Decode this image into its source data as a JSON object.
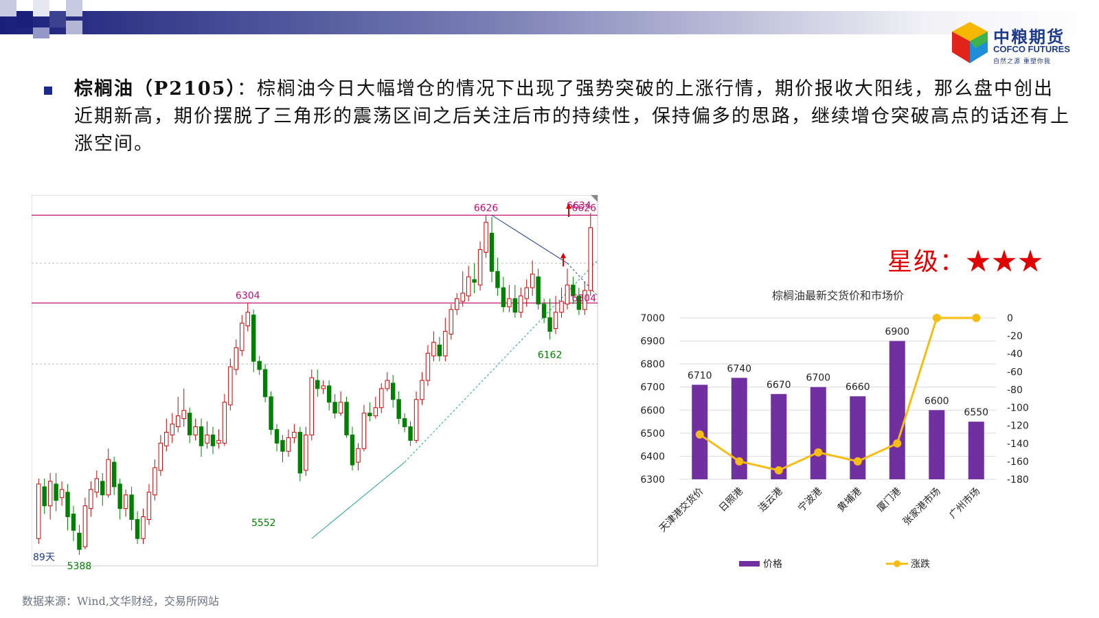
{
  "header": {
    "logo_cn": "中粮期货",
    "logo_en": "COFCO FUTURES",
    "logo_slogan": "自然之源 重塑你我"
  },
  "commentary": {
    "title": "棕榈油（P2105）",
    "separator": "：",
    "text": "棕榈油今日大幅增仓的情况下出现了强势突破的上涨行情，期价报收大阳线，那么盘中创出近期新高，期价摆脱了三角形的震荡区间之后关注后市的持续性，保持偏多的思路，继续增仓突破高点的话还有上涨空间。"
  },
  "rating": {
    "label": "星级：",
    "stars": "★★★"
  },
  "source": "数据来源：Wind,文华财经，交易所网站",
  "chart_data": [
    {
      "type": "candlestick",
      "period_label": "89天",
      "ylim": [
        5340,
        6700
      ],
      "annotations": {
        "high_left": "6304",
        "high_right": "6304",
        "peak_mid": "6626",
        "peak_right": "6626",
        "peak_last": "6634",
        "low_a": "5552",
        "low_b": "5388",
        "low_c": "6162"
      },
      "levels": [
        6626,
        6304
      ],
      "colors": {
        "up": "#d10000",
        "down": "#008000",
        "level": "#c01070"
      },
      "candles": [
        [
          5440,
          5640,
          5420,
          5660
        ],
        [
          5630,
          5560,
          5530,
          5660
        ],
        [
          5560,
          5650,
          5510,
          5680
        ],
        [
          5640,
          5580,
          5540,
          5680
        ],
        [
          5590,
          5620,
          5560,
          5650
        ],
        [
          5610,
          5520,
          5470,
          5640
        ],
        [
          5530,
          5470,
          5430,
          5560
        ],
        [
          5460,
          5400,
          5380,
          5490
        ],
        [
          5410,
          5560,
          5400,
          5590
        ],
        [
          5550,
          5620,
          5520,
          5650
        ],
        [
          5610,
          5660,
          5590,
          5690
        ],
        [
          5650,
          5600,
          5560,
          5680
        ],
        [
          5600,
          5730,
          5590,
          5770
        ],
        [
          5720,
          5630,
          5600,
          5740
        ],
        [
          5640,
          5550,
          5510,
          5660
        ],
        [
          5550,
          5600,
          5520,
          5620
        ],
        [
          5600,
          5510,
          5470,
          5630
        ],
        [
          5510,
          5440,
          5420,
          5540
        ],
        [
          5440,
          5520,
          5420,
          5550
        ],
        [
          5510,
          5610,
          5490,
          5640
        ],
        [
          5600,
          5700,
          5580,
          5730
        ],
        [
          5690,
          5790,
          5670,
          5820
        ],
        [
          5780,
          5830,
          5760,
          5880
        ],
        [
          5820,
          5860,
          5790,
          5900
        ],
        [
          5850,
          5890,
          5830,
          5960
        ],
        [
          5880,
          5910,
          5850,
          5990
        ],
        [
          5900,
          5820,
          5790,
          5920
        ],
        [
          5820,
          5850,
          5800,
          5880
        ],
        [
          5850,
          5780,
          5740,
          5880
        ],
        [
          5790,
          5820,
          5770,
          5870
        ],
        [
          5820,
          5780,
          5750,
          5850
        ],
        [
          5790,
          5800,
          5770,
          5840
        ],
        [
          5790,
          5940,
          5780,
          5970
        ],
        [
          5930,
          6070,
          5910,
          6100
        ],
        [
          6060,
          6140,
          6040,
          6170
        ],
        [
          6130,
          6230,
          6110,
          6260
        ],
        [
          6220,
          6270,
          6200,
          6304
        ],
        [
          6260,
          6090,
          6050,
          6280
        ],
        [
          6090,
          6060,
          6040,
          6110
        ],
        [
          6060,
          5960,
          5940,
          6080
        ],
        [
          5960,
          5840,
          5820,
          5980
        ],
        [
          5840,
          5790,
          5760,
          5860
        ],
        [
          5800,
          5760,
          5720,
          5820
        ],
        [
          5760,
          5810,
          5740,
          5840
        ],
        [
          5810,
          5830,
          5790,
          5860
        ],
        [
          5830,
          5680,
          5650,
          5850
        ],
        [
          5690,
          5820,
          5670,
          5850
        ],
        [
          5820,
          6030,
          5800,
          6060
        ],
        [
          6020,
          5990,
          5960,
          6060
        ],
        [
          5990,
          6000,
          5970,
          6020
        ],
        [
          6000,
          5940,
          5910,
          6020
        ],
        [
          5940,
          5900,
          5880,
          5970
        ],
        [
          5900,
          5940,
          5890,
          5980
        ],
        [
          5940,
          5820,
          5810,
          5960
        ],
        [
          5820,
          5710,
          5690,
          5850
        ],
        [
          5720,
          5770,
          5690,
          5790
        ],
        [
          5770,
          5900,
          5760,
          5930
        ],
        [
          5900,
          5890,
          5870,
          5940
        ],
        [
          5890,
          5920,
          5880,
          5960
        ],
        [
          5920,
          5990,
          5900,
          6010
        ],
        [
          5990,
          6020,
          5980,
          6050
        ],
        [
          6010,
          5950,
          5920,
          6040
        ],
        [
          5950,
          5880,
          5860,
          5980
        ],
        [
          5880,
          5850,
          5830,
          5900
        ],
        [
          5850,
          5800,
          5780,
          5870
        ],
        [
          5800,
          5950,
          5790,
          5980
        ],
        [
          5950,
          6020,
          5930,
          6050
        ],
        [
          6020,
          6120,
          6000,
          6150
        ],
        [
          6110,
          6160,
          6090,
          6200
        ],
        [
          6150,
          6110,
          6090,
          6180
        ],
        [
          6110,
          6200,
          6090,
          6250
        ],
        [
          6190,
          6280,
          6170,
          6300
        ],
        [
          6280,
          6320,
          6260,
          6340
        ],
        [
          6310,
          6340,
          6290,
          6420
        ],
        [
          6330,
          6400,
          6310,
          6440
        ],
        [
          6390,
          6380,
          6340,
          6450
        ],
        [
          6370,
          6500,
          6350,
          6530
        ],
        [
          6490,
          6600,
          6470,
          6626
        ],
        [
          6560,
          6420,
          6380,
          6620
        ],
        [
          6420,
          6360,
          6330,
          6470
        ],
        [
          6360,
          6290,
          6270,
          6400
        ],
        [
          6290,
          6320,
          6270,
          6370
        ],
        [
          6320,
          6270,
          6250,
          6370
        ],
        [
          6270,
          6330,
          6250,
          6360
        ],
        [
          6320,
          6360,
          6290,
          6390
        ],
        [
          6360,
          6410,
          6330,
          6460
        ],
        [
          6400,
          6300,
          6280,
          6430
        ],
        [
          6300,
          6250,
          6230,
          6320
        ],
        [
          6250,
          6200,
          6170,
          6320
        ],
        [
          6210,
          6270,
          6190,
          6330
        ],
        [
          6270,
          6310,
          6250,
          6360
        ],
        [
          6300,
          6370,
          6280,
          6430
        ],
        [
          6370,
          6330,
          6300,
          6400
        ],
        [
          6330,
          6280,
          6260,
          6360
        ],
        [
          6280,
          6350,
          6260,
          6380
        ],
        [
          6350,
          6580,
          6330,
          6634
        ]
      ]
    },
    {
      "type": "bar+line",
      "title": "棕榈油最新交货价和市场价",
      "categories": [
        "天津港交货价",
        "日照港",
        "连云港",
        "宁波港",
        "黄埔港",
        "厦门港",
        "张家港市场",
        "广州市场"
      ],
      "series": [
        {
          "name": "价格",
          "type": "bar",
          "axis": "left",
          "color": "#7030a0",
          "values": [
            6710,
            6740,
            6670,
            6700,
            6660,
            6900,
            6600,
            6550
          ]
        },
        {
          "name": "涨跌",
          "type": "line",
          "axis": "right",
          "color": "#f5bd14",
          "values": [
            -130,
            -160,
            -170,
            -150,
            -160,
            -140,
            0,
            0
          ]
        }
      ],
      "ylim_left": [
        6300,
        7000
      ],
      "ylim_right": [
        -180,
        0
      ],
      "yticks_left": [
        6300,
        6400,
        6500,
        6600,
        6700,
        6800,
        6900,
        7000
      ],
      "yticks_right": [
        0,
        -20,
        -40,
        -60,
        -80,
        -100,
        -120,
        -140,
        -160,
        -180
      ],
      "legend_position": "bottom"
    }
  ]
}
